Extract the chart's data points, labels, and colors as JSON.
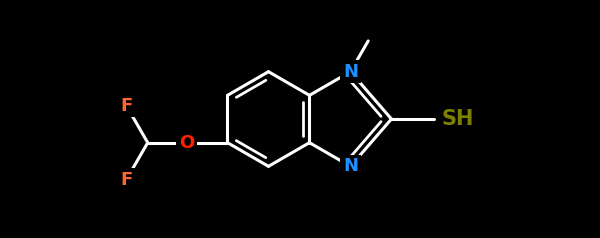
{
  "bg_color": "#000000",
  "bond_color": "#ffffff",
  "N_color": "#1E90FF",
  "F_color": "#FF6633",
  "O_color": "#FF2200",
  "SH_color": "#808000",
  "figsize": [
    6.0,
    2.38
  ],
  "dpi": 100,
  "lw": 2.2,
  "fs": 13,
  "xlim": [
    -5.2,
    5.8
  ],
  "ylim": [
    -2.5,
    2.5
  ]
}
